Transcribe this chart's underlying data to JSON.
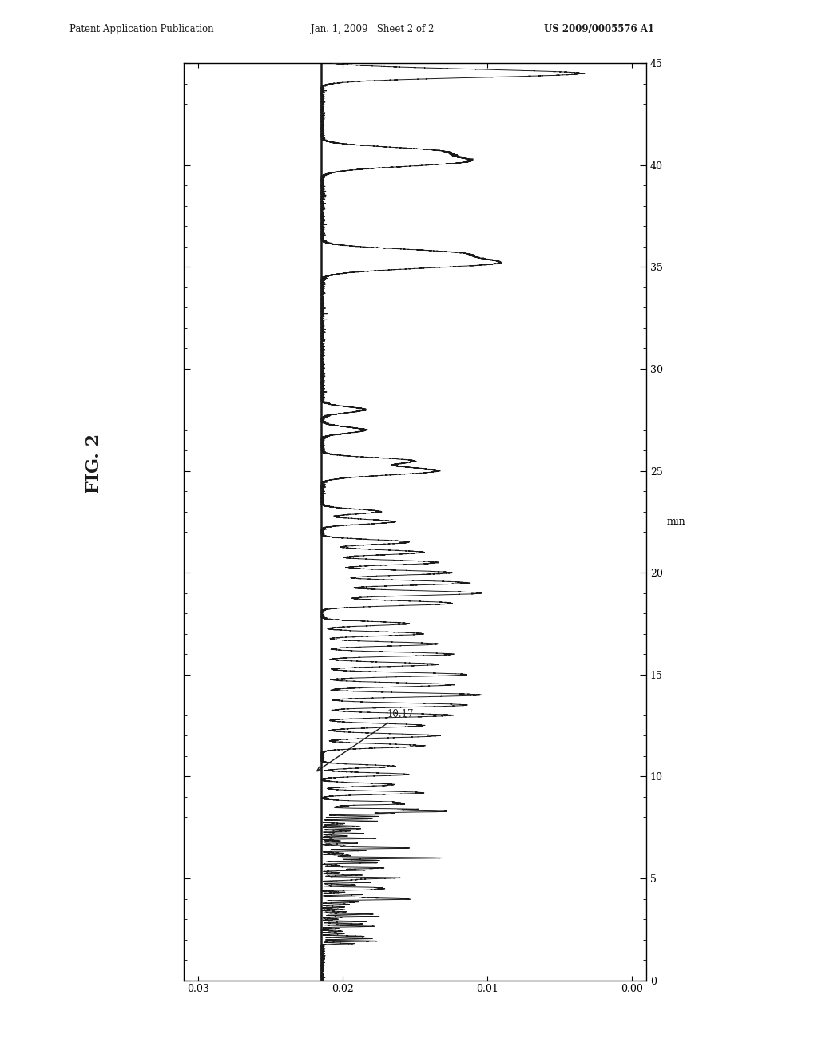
{
  "header_left": "Patent Application Publication",
  "header_center": "Jan. 1, 2009   Sheet 2 of 2",
  "header_right": "US 2009/0005576 A1",
  "fig_label": "FIG. 2",
  "annotation_text": "10.17",
  "xlabel": "min",
  "xlim": [
    0,
    45
  ],
  "ylim": [
    0.0,
    0.03
  ],
  "yticks": [
    0.0,
    0.01,
    0.02,
    0.03
  ],
  "xticks": [
    0,
    5,
    10,
    15,
    20,
    25,
    30,
    35,
    40,
    45
  ],
  "background_color": "#ffffff",
  "line_color": "#1a1a1a",
  "baseline": 0.0215,
  "peak_scale": 0.021
}
